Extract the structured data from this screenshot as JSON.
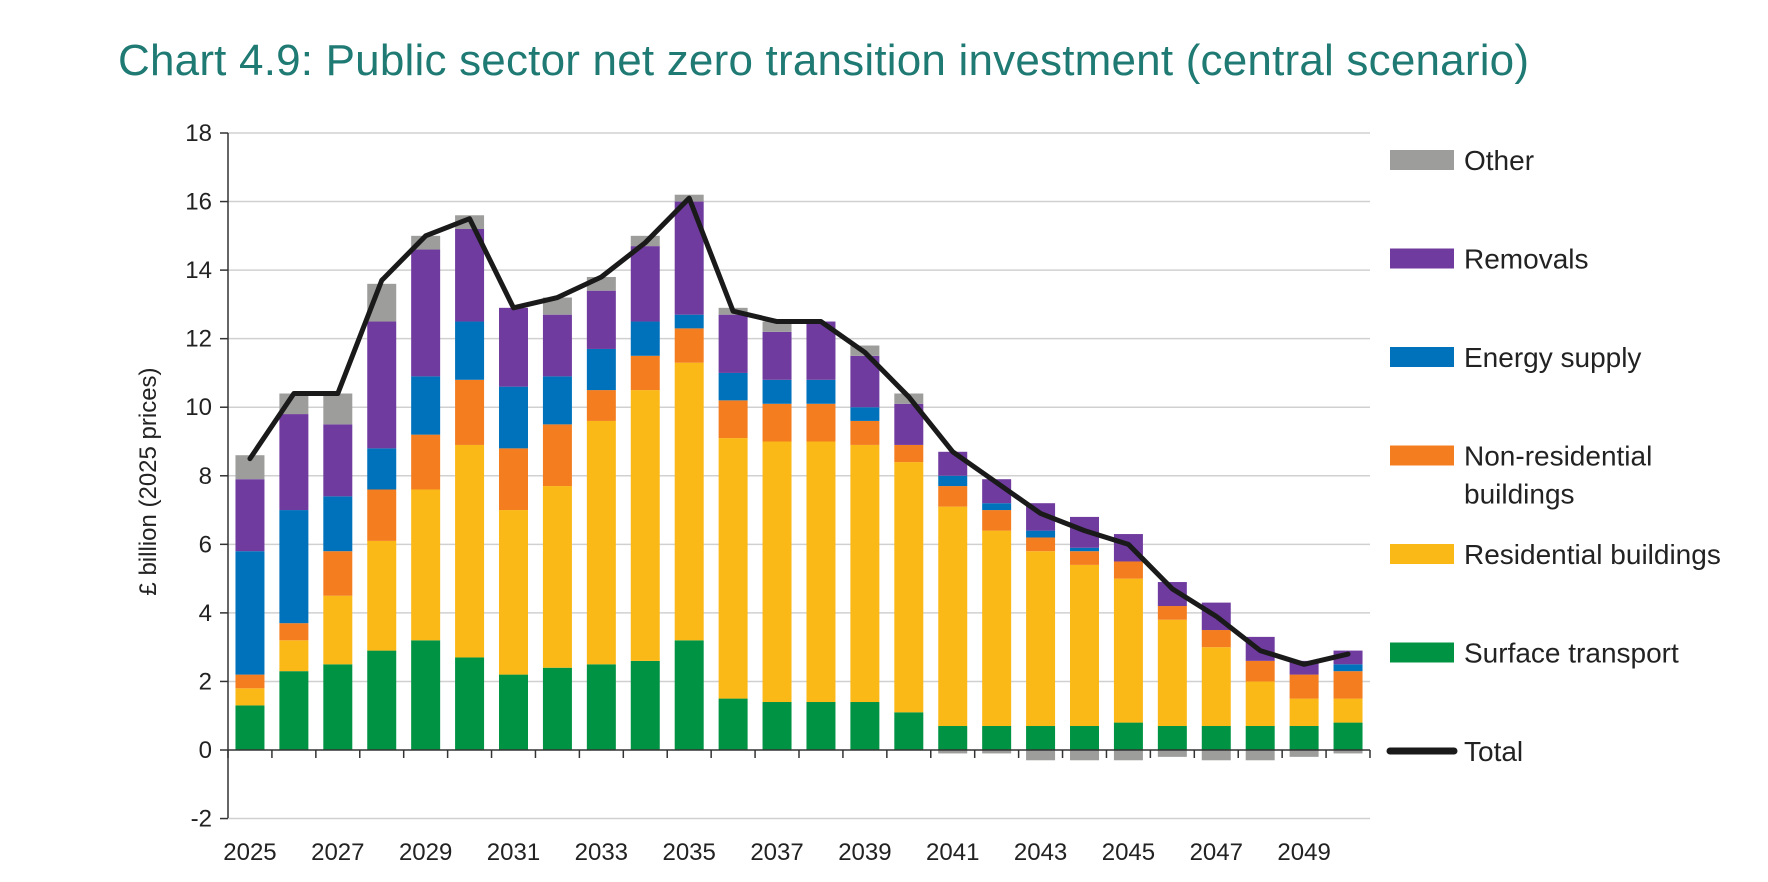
{
  "chart_title": "Chart 4.9: Public sector net zero transition investment (central scenario)",
  "chart_data": {
    "type": "bar",
    "stacked": true,
    "title": "Chart 4.9: Public sector net zero transition investment (central scenario)",
    "xlabel": "",
    "ylabel": "£ billion (2025 prices)",
    "ylim": [
      -2,
      18
    ],
    "yticks": [
      -2,
      0,
      2,
      4,
      6,
      8,
      10,
      12,
      14,
      16,
      18
    ],
    "grid": true,
    "legend_position": "right",
    "categories": [
      "2025",
      "2026",
      "2027",
      "2028",
      "2029",
      "2030",
      "2031",
      "2032",
      "2033",
      "2034",
      "2035",
      "2036",
      "2037",
      "2038",
      "2039",
      "2040",
      "2041",
      "2042",
      "2043",
      "2044",
      "2045",
      "2046",
      "2047",
      "2048",
      "2049",
      "2050"
    ],
    "x_tick_labels": [
      "2025",
      "2027",
      "2029",
      "2031",
      "2033",
      "2035",
      "2037",
      "2039",
      "2041",
      "2043",
      "2045",
      "2047",
      "2049"
    ],
    "series": [
      {
        "name": "Surface transport",
        "color": "#009343",
        "values": [
          1.3,
          2.3,
          2.5,
          2.9,
          3.2,
          2.7,
          2.2,
          2.4,
          2.5,
          2.6,
          3.2,
          1.5,
          1.4,
          1.4,
          1.4,
          1.1,
          0.7,
          0.7,
          0.7,
          0.7,
          0.8,
          0.7,
          0.7,
          0.7,
          0.7,
          0.8
        ]
      },
      {
        "name": "Residential buildings",
        "color": "#fbb917",
        "values": [
          0.5,
          0.9,
          2.0,
          3.2,
          4.4,
          6.2,
          4.8,
          5.3,
          7.1,
          7.9,
          8.1,
          7.6,
          7.6,
          7.6,
          7.5,
          7.3,
          6.4,
          5.7,
          5.1,
          4.7,
          4.2,
          3.1,
          2.3,
          1.3,
          0.8,
          0.7
        ]
      },
      {
        "name": "Non-residential buildings",
        "color": "#f47d20",
        "values": [
          0.4,
          0.5,
          1.3,
          1.5,
          1.6,
          1.9,
          1.8,
          1.8,
          0.9,
          1.0,
          1.0,
          1.1,
          1.1,
          1.1,
          0.7,
          0.5,
          0.6,
          0.6,
          0.4,
          0.4,
          0.5,
          0.4,
          0.5,
          0.6,
          0.7,
          0.8
        ]
      },
      {
        "name": "Energy supply",
        "color": "#0072bc",
        "values": [
          3.6,
          3.3,
          1.6,
          1.2,
          1.7,
          1.7,
          1.8,
          1.4,
          1.2,
          1.0,
          0.4,
          0.8,
          0.7,
          0.7,
          0.4,
          0.0,
          0.3,
          0.2,
          0.2,
          0.1,
          0.0,
          0.0,
          0.0,
          0.0,
          0.0,
          0.2
        ]
      },
      {
        "name": "Removals",
        "color": "#6f3b9e",
        "values": [
          2.1,
          2.8,
          2.1,
          3.7,
          3.7,
          2.7,
          2.3,
          1.8,
          1.7,
          2.2,
          3.3,
          1.7,
          1.4,
          1.7,
          1.5,
          1.2,
          0.7,
          0.7,
          0.8,
          0.9,
          0.8,
          0.7,
          0.8,
          0.7,
          0.4,
          0.4
        ]
      },
      {
        "name": "Other",
        "color": "#9d9d9c",
        "values": [
          0.7,
          0.6,
          0.9,
          1.1,
          0.4,
          0.4,
          0.0,
          0.5,
          0.4,
          0.3,
          0.2,
          0.2,
          0.3,
          0.0,
          0.3,
          0.3,
          -0.1,
          -0.1,
          -0.3,
          -0.3,
          -0.3,
          -0.2,
          -0.3,
          -0.3,
          -0.2,
          -0.1
        ]
      }
    ],
    "line_series": {
      "name": "Total",
      "color": "#1a1a1a",
      "values": [
        8.5,
        10.4,
        10.4,
        13.7,
        15.0,
        15.5,
        12.9,
        13.2,
        13.8,
        14.8,
        16.1,
        12.8,
        12.5,
        12.5,
        11.6,
        10.3,
        8.7,
        7.8,
        6.9,
        6.4,
        6.0,
        4.7,
        3.9,
        2.9,
        2.5,
        2.8
      ]
    },
    "legend": [
      "Other",
      "Removals",
      "Energy supply",
      "Non-residential buildings",
      "Residential buildings",
      "Surface transport",
      "Total"
    ],
    "legend_lines": {
      "Other": [
        "Other"
      ],
      "Removals": [
        "Removals"
      ],
      "Energy supply": [
        "Energy supply"
      ],
      "Non-residential buildings": [
        "Non-residential",
        "buildings"
      ],
      "Residential buildings": [
        "Residential buildings"
      ],
      "Surface transport": [
        "Surface transport"
      ],
      "Total": [
        "Total"
      ]
    }
  }
}
